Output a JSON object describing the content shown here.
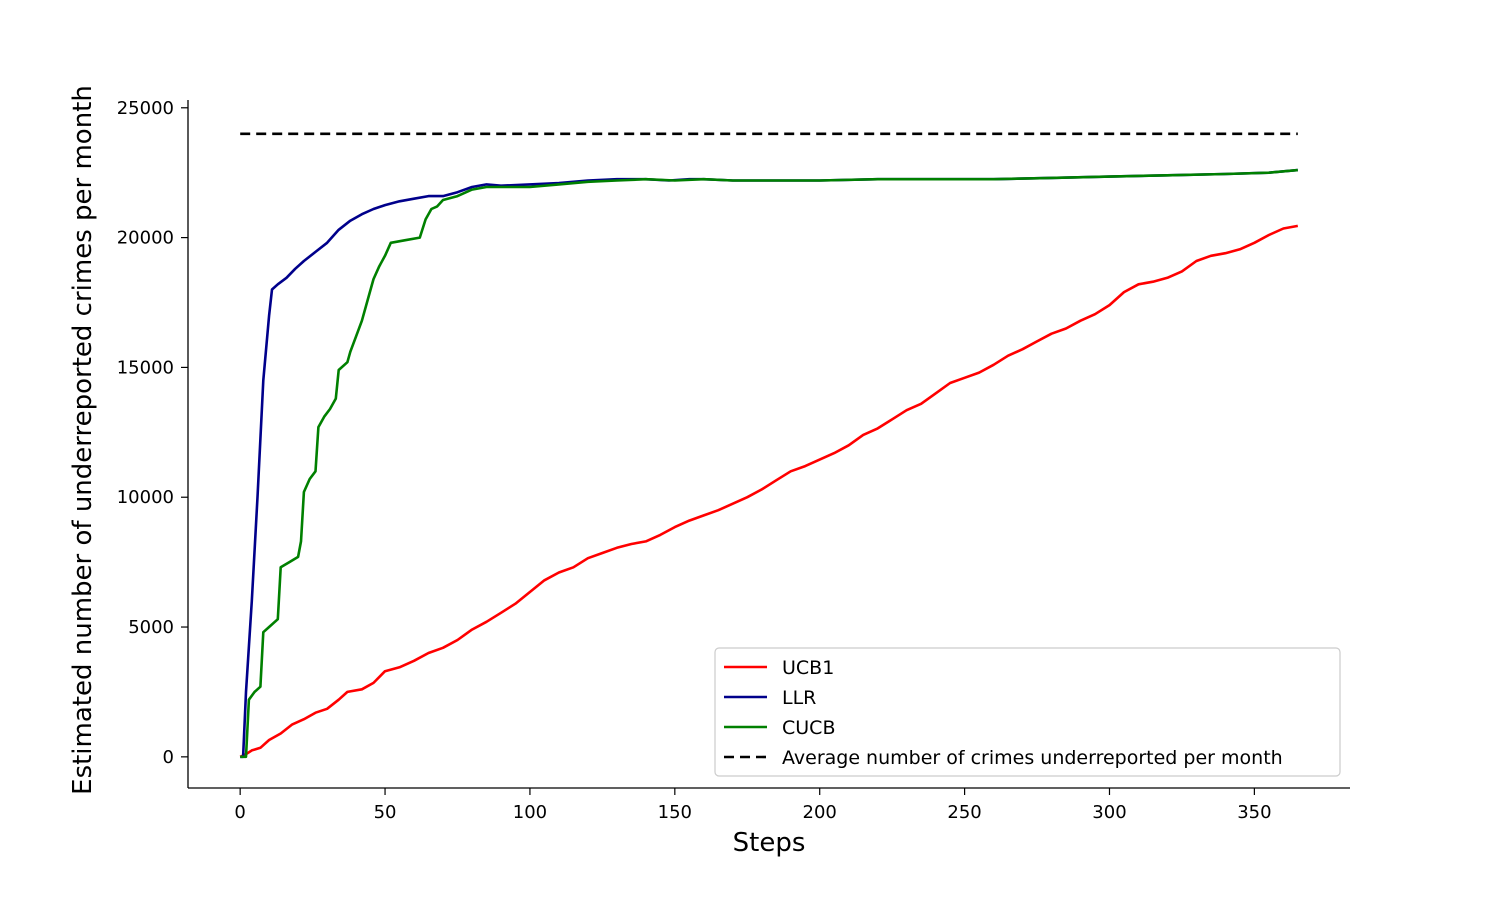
{
  "chart_data": {
    "type": "line",
    "title": "",
    "xlabel": "Steps",
    "ylabel": "Estimated number of underreported crimes per month",
    "xlim": [
      -18,
      383
    ],
    "ylim": [
      -1200,
      25300
    ],
    "xticks": [
      0,
      50,
      100,
      150,
      200,
      250,
      300,
      350
    ],
    "yticks": [
      0,
      5000,
      10000,
      15000,
      20000,
      25000
    ],
    "grid": false,
    "legend_position": "bottom-right",
    "series": [
      {
        "name": "UCB1",
        "color": "#ff0000",
        "style": "solid",
        "points": [
          [
            0,
            0
          ],
          [
            2,
            100
          ],
          [
            4,
            250
          ],
          [
            7,
            350
          ],
          [
            10,
            650
          ],
          [
            14,
            900
          ],
          [
            18,
            1250
          ],
          [
            22,
            1450
          ],
          [
            26,
            1700
          ],
          [
            30,
            1850
          ],
          [
            34,
            2200
          ],
          [
            37,
            2500
          ],
          [
            42,
            2600
          ],
          [
            46,
            2850
          ],
          [
            50,
            3300
          ],
          [
            55,
            3450
          ],
          [
            60,
            3700
          ],
          [
            65,
            4000
          ],
          [
            70,
            4200
          ],
          [
            75,
            4500
          ],
          [
            80,
            4900
          ],
          [
            85,
            5200
          ],
          [
            90,
            5550
          ],
          [
            95,
            5900
          ],
          [
            100,
            6350
          ],
          [
            105,
            6800
          ],
          [
            110,
            7100
          ],
          [
            115,
            7300
          ],
          [
            120,
            7650
          ],
          [
            125,
            7850
          ],
          [
            130,
            8050
          ],
          [
            135,
            8200
          ],
          [
            140,
            8300
          ],
          [
            145,
            8550
          ],
          [
            150,
            8850
          ],
          [
            155,
            9100
          ],
          [
            160,
            9300
          ],
          [
            165,
            9500
          ],
          [
            170,
            9750
          ],
          [
            175,
            10000
          ],
          [
            180,
            10300
          ],
          [
            185,
            10650
          ],
          [
            190,
            11000
          ],
          [
            195,
            11200
          ],
          [
            200,
            11450
          ],
          [
            205,
            11700
          ],
          [
            210,
            12000
          ],
          [
            215,
            12400
          ],
          [
            220,
            12650
          ],
          [
            225,
            13000
          ],
          [
            230,
            13350
          ],
          [
            235,
            13600
          ],
          [
            240,
            14000
          ],
          [
            245,
            14400
          ],
          [
            250,
            14600
          ],
          [
            255,
            14800
          ],
          [
            260,
            15100
          ],
          [
            265,
            15450
          ],
          [
            270,
            15700
          ],
          [
            275,
            16000
          ],
          [
            280,
            16300
          ],
          [
            285,
            16500
          ],
          [
            290,
            16800
          ],
          [
            295,
            17050
          ],
          [
            300,
            17400
          ],
          [
            305,
            17900
          ],
          [
            310,
            18200
          ],
          [
            315,
            18300
          ],
          [
            320,
            18450
          ],
          [
            325,
            18700
          ],
          [
            330,
            19100
          ],
          [
            335,
            19300
          ],
          [
            340,
            19400
          ],
          [
            345,
            19550
          ],
          [
            350,
            19800
          ],
          [
            355,
            20100
          ],
          [
            360,
            20350
          ],
          [
            365,
            20450
          ]
        ]
      },
      {
        "name": "LLR",
        "color": "#00008b",
        "style": "solid",
        "points": [
          [
            0,
            0
          ],
          [
            1,
            0
          ],
          [
            2,
            2500
          ],
          [
            4,
            6000
          ],
          [
            6,
            10000
          ],
          [
            8,
            14500
          ],
          [
            10,
            17000
          ],
          [
            11,
            18000
          ],
          [
            13,
            18200
          ],
          [
            16,
            18450
          ],
          [
            19,
            18800
          ],
          [
            22,
            19100
          ],
          [
            26,
            19450
          ],
          [
            30,
            19800
          ],
          [
            34,
            20300
          ],
          [
            38,
            20650
          ],
          [
            42,
            20900
          ],
          [
            46,
            21100
          ],
          [
            50,
            21250
          ],
          [
            55,
            21400
          ],
          [
            60,
            21500
          ],
          [
            65,
            21600
          ],
          [
            70,
            21600
          ],
          [
            75,
            21750
          ],
          [
            80,
            21950
          ],
          [
            85,
            22050
          ],
          [
            90,
            22000
          ],
          [
            100,
            22050
          ],
          [
            110,
            22100
          ],
          [
            120,
            22200
          ],
          [
            130,
            22250
          ],
          [
            140,
            22250
          ],
          [
            148,
            22200
          ],
          [
            155,
            22250
          ],
          [
            160,
            22250
          ],
          [
            170,
            22200
          ],
          [
            180,
            22200
          ],
          [
            200,
            22200
          ],
          [
            220,
            22250
          ],
          [
            240,
            22250
          ],
          [
            260,
            22250
          ],
          [
            280,
            22300
          ],
          [
            300,
            22350
          ],
          [
            320,
            22400
          ],
          [
            340,
            22450
          ],
          [
            355,
            22500
          ],
          [
            365,
            22600
          ]
        ]
      },
      {
        "name": "CUCB",
        "color": "#008000",
        "style": "solid",
        "points": [
          [
            0,
            0
          ],
          [
            2,
            0
          ],
          [
            3,
            2200
          ],
          [
            5,
            2500
          ],
          [
            7,
            2700
          ],
          [
            8,
            4800
          ],
          [
            10,
            5000
          ],
          [
            13,
            5300
          ],
          [
            14,
            7300
          ],
          [
            17,
            7500
          ],
          [
            20,
            7700
          ],
          [
            21,
            8300
          ],
          [
            22,
            10200
          ],
          [
            24,
            10700
          ],
          [
            26,
            11000
          ],
          [
            27,
            12700
          ],
          [
            29,
            13100
          ],
          [
            31,
            13400
          ],
          [
            33,
            13800
          ],
          [
            34,
            14900
          ],
          [
            37,
            15200
          ],
          [
            38,
            15600
          ],
          [
            40,
            16200
          ],
          [
            42,
            16800
          ],
          [
            44,
            17600
          ],
          [
            46,
            18400
          ],
          [
            48,
            18900
          ],
          [
            50,
            19300
          ],
          [
            52,
            19800
          ],
          [
            57,
            19900
          ],
          [
            62,
            20000
          ],
          [
            64,
            20700
          ],
          [
            66,
            21100
          ],
          [
            68,
            21200
          ],
          [
            70,
            21450
          ],
          [
            75,
            21600
          ],
          [
            80,
            21850
          ],
          [
            85,
            21950
          ],
          [
            100,
            21950
          ],
          [
            110,
            22050
          ],
          [
            120,
            22150
          ],
          [
            130,
            22200
          ],
          [
            140,
            22250
          ],
          [
            150,
            22200
          ],
          [
            160,
            22250
          ],
          [
            170,
            22200
          ],
          [
            180,
            22200
          ],
          [
            200,
            22200
          ],
          [
            220,
            22250
          ],
          [
            240,
            22250
          ],
          [
            260,
            22250
          ],
          [
            280,
            22300
          ],
          [
            300,
            22350
          ],
          [
            320,
            22400
          ],
          [
            340,
            22450
          ],
          [
            355,
            22500
          ],
          [
            365,
            22600
          ]
        ]
      },
      {
        "name": "Average number of crimes underreported per month",
        "color": "#000000",
        "style": "dashed",
        "points": [
          [
            0,
            24000
          ],
          [
            365,
            24000
          ]
        ]
      }
    ]
  }
}
